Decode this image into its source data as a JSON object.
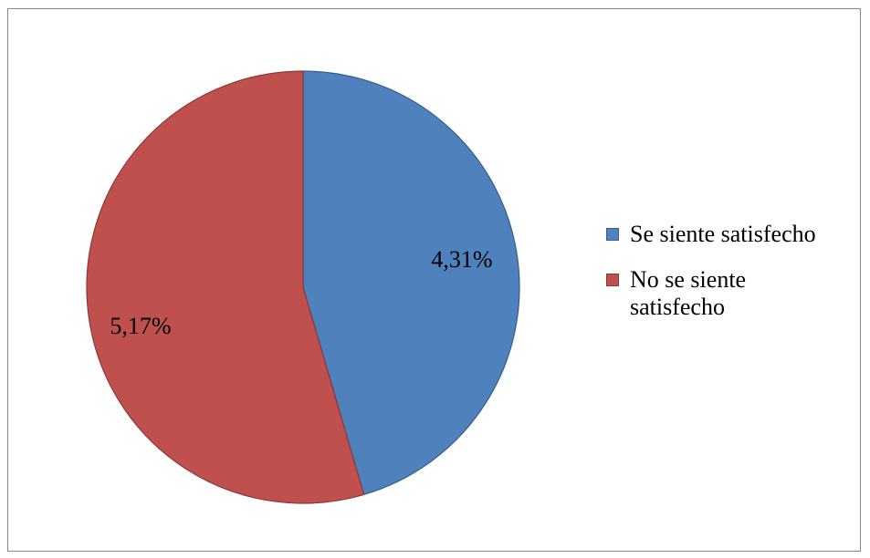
{
  "chart_data": {
    "type": "pie",
    "categories": [
      "Se siente satisfecho",
      "No se siente satisfecho"
    ],
    "values": [
      4.31,
      5.17
    ],
    "labels": [
      "4,31%",
      "5,17%"
    ],
    "colors": [
      "#4F81BD",
      "#C0504D"
    ],
    "border_colors": [
      "#385D8A",
      "#8C3836"
    ],
    "start_angle": "12 o'clock",
    "direction": "clockwise",
    "legend": {
      "position": "right",
      "entries": [
        "Se siente satisfecho",
        "No se siente satisfecho"
      ]
    }
  }
}
